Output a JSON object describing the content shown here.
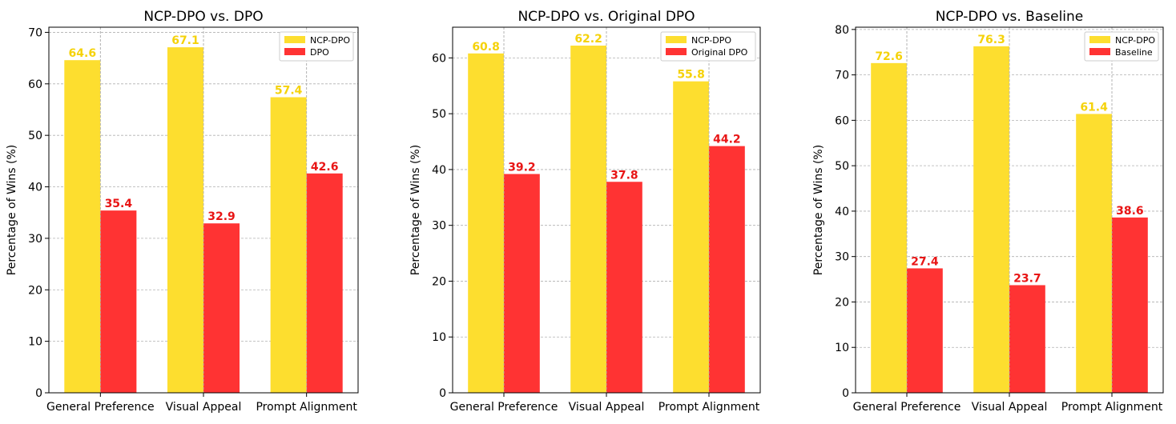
{
  "chart_data": [
    {
      "type": "bar",
      "title": "NCP-DPO vs. DPO",
      "ylabel": "Percentage of Wins (%)",
      "xlabel": "",
      "categories": [
        "General Preference",
        "Visual Appeal",
        "Prompt Alignment"
      ],
      "series": [
        {
          "name": "NCP-DPO",
          "values": [
            64.6,
            67.1,
            57.4
          ],
          "color": "#FDDE2F",
          "label_color": "#F5D20A"
        },
        {
          "name": "DPO",
          "values": [
            35.4,
            32.9,
            42.6
          ],
          "color": "#FF3333",
          "label_color": "#E81515"
        }
      ],
      "ylim": [
        0,
        71
      ],
      "yticks": [
        0,
        10,
        20,
        30,
        40,
        50,
        60,
        70
      ],
      "grid": true,
      "legend": "top-right"
    },
    {
      "type": "bar",
      "title": "NCP-DPO vs. Original DPO",
      "ylabel": "Percentage of Wins (%)",
      "xlabel": "",
      "categories": [
        "General Preference",
        "Visual Appeal",
        "Prompt Alignment"
      ],
      "series": [
        {
          "name": "NCP-DPO",
          "values": [
            60.8,
            62.2,
            55.8
          ],
          "color": "#FDDE2F",
          "label_color": "#F5D20A"
        },
        {
          "name": "Original DPO",
          "values": [
            39.2,
            37.8,
            44.2
          ],
          "color": "#FF3333",
          "label_color": "#E81515"
        }
      ],
      "ylim": [
        0,
        65.5
      ],
      "yticks": [
        0,
        10,
        20,
        30,
        40,
        50,
        60
      ],
      "grid": true,
      "legend": "top-right"
    },
    {
      "type": "bar",
      "title": "NCP-DPO vs. Baseline",
      "ylabel": "Percentage of Wins (%)",
      "xlabel": "",
      "categories": [
        "General Preference",
        "Visual Appeal",
        "Prompt Alignment"
      ],
      "series": [
        {
          "name": "NCP-DPO",
          "values": [
            72.6,
            76.3,
            61.4
          ],
          "color": "#FDDE2F",
          "label_color": "#F5D20A"
        },
        {
          "name": "Baseline",
          "values": [
            27.4,
            23.7,
            38.6
          ],
          "color": "#FF3333",
          "label_color": "#E81515"
        }
      ],
      "ylim": [
        0,
        80.5
      ],
      "yticks": [
        0,
        10,
        20,
        30,
        40,
        50,
        60,
        70,
        80
      ],
      "grid": true,
      "legend": "top-right"
    }
  ]
}
